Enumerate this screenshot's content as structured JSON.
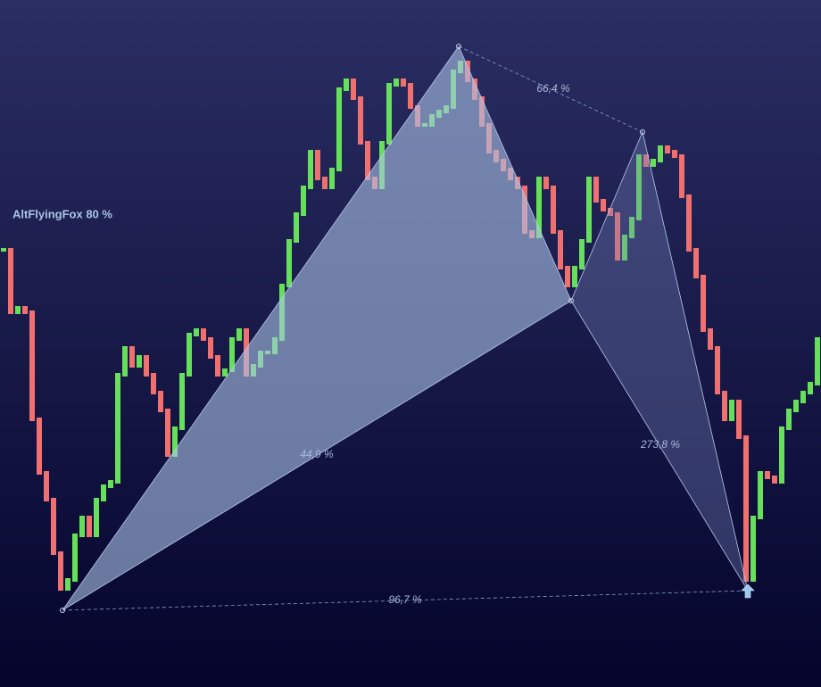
{
  "chart_data": {
    "type": "candlestep",
    "title": "AltFlyingFox 80 %",
    "values": [
      490,
      420,
      425,
      420,
      300,
      240,
      210,
      150,
      110,
      120,
      170,
      190,
      170,
      210,
      225,
      230,
      350,
      380,
      360,
      370,
      350,
      330,
      310,
      260,
      290,
      350,
      395,
      400,
      390,
      370,
      350,
      355,
      390,
      400,
      350,
      360,
      375,
      375,
      390,
      450,
      500,
      530,
      560,
      600,
      570,
      560,
      580,
      670,
      680,
      660,
      610,
      570,
      560,
      610,
      675,
      680,
      675,
      650,
      630,
      630,
      640,
      645,
      650,
      690,
      700,
      680,
      660,
      630,
      600,
      590,
      580,
      570,
      560,
      510,
      505,
      570,
      560,
      510,
      470,
      450,
      470,
      500,
      570,
      545,
      535,
      530,
      480,
      505,
      525,
      595,
      585,
      590,
      605,
      600,
      595,
      550,
      490,
      460,
      400,
      380,
      330,
      300,
      320,
      280,
      120,
      190,
      240,
      235,
      230,
      290,
      310,
      320,
      330,
      340,
      390
    ],
    "up_color": "#66e05a",
    "down_color": "#f07070",
    "xlim": [
      -0.5,
      114.5
    ],
    "ylim": [
      0,
      770
    ],
    "pattern": {
      "x": [
        8.25,
        63.75,
        79.5,
        89.5,
        104.25
      ],
      "y": [
        86,
        718,
        433,
        622,
        108
      ]
    },
    "ratios": [
      "66,4 %",
      "44,9 %",
      "273,8 %",
      "96,7 %"
    ]
  }
}
